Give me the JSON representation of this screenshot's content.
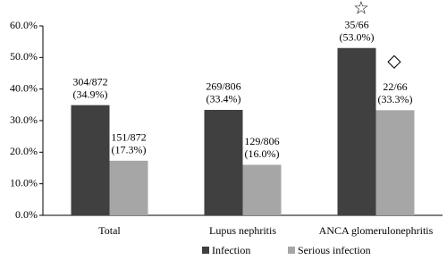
{
  "chart_data": {
    "type": "bar",
    "categories": [
      "Total",
      "Lupus nephritis",
      "ANCA glomerulonephritis"
    ],
    "series": [
      {
        "name": "Infection",
        "color": "#404040",
        "values": [
          34.9,
          33.4,
          53.0
        ],
        "value_labels": [
          [
            "304/872",
            "(34.9%)"
          ],
          [
            "269/806",
            "(33.4%)"
          ],
          [
            "35/66",
            "(53.0%)"
          ]
        ]
      },
      {
        "name": "Serious infection",
        "color": "#a6a6a6",
        "values": [
          17.3,
          16.0,
          33.3
        ],
        "value_labels": [
          [
            "151/872",
            "(17.3%)"
          ],
          [
            "129/806",
            "(16.0%)"
          ],
          [
            "22/66",
            "(33.3%)"
          ]
        ]
      }
    ],
    "ylim": [
      0,
      60
    ],
    "yticks": [
      {
        "value": 0,
        "label": "0.0%"
      },
      {
        "value": 10,
        "label": "10.0%"
      },
      {
        "value": 20,
        "label": "20.0%"
      },
      {
        "value": 30,
        "label": "30.0%"
      },
      {
        "value": 40,
        "label": "40.0%"
      },
      {
        "value": 50,
        "label": "50.0%"
      },
      {
        "value": 60,
        "label": "60.0%"
      }
    ],
    "grid": false,
    "legend": "bottom",
    "annotations": [
      "☆",
      "◇"
    ]
  }
}
